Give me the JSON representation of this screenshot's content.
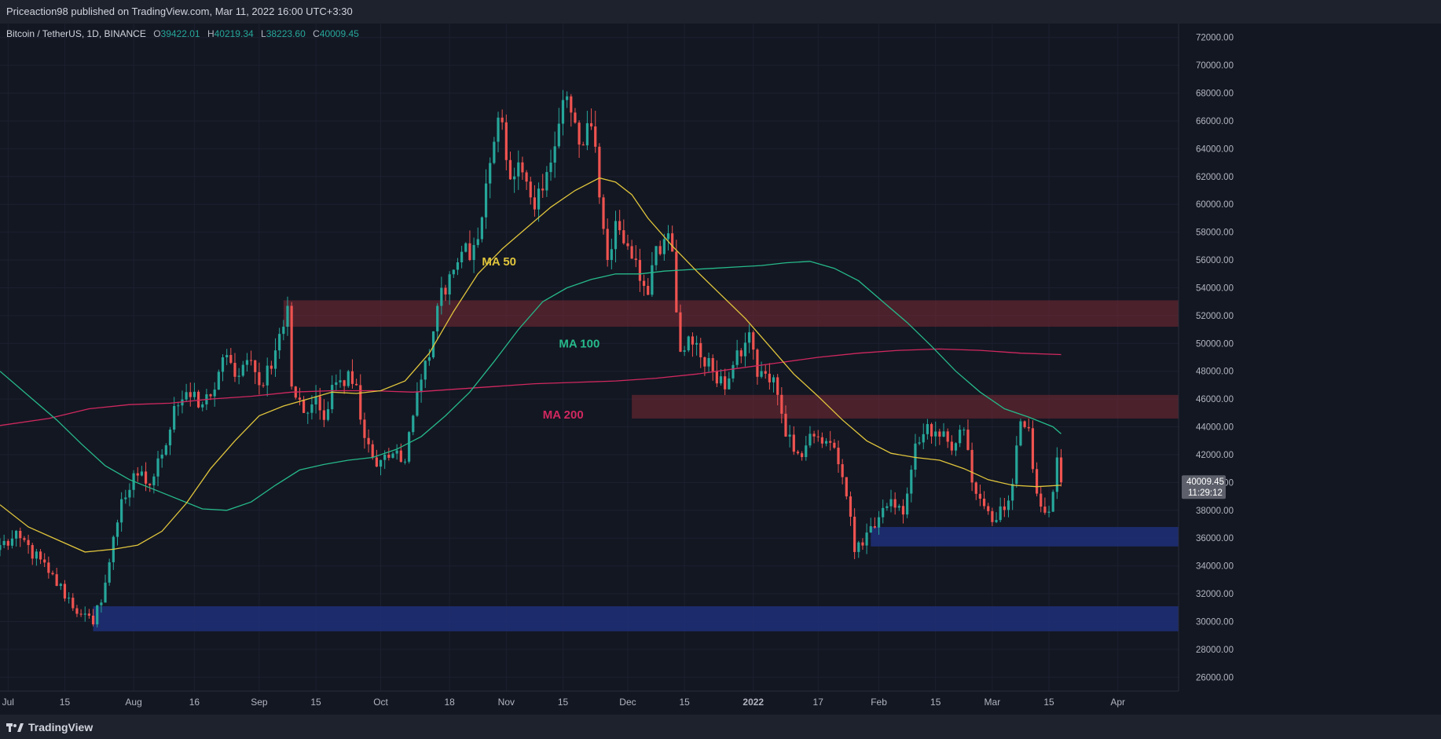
{
  "header": {
    "publish_text": "Priceaction98 published on TradingView.com, Mar 11, 2022 16:00 UTC+3:30"
  },
  "symbol": {
    "name": "Bitcoin / TetherUS, 1D, BINANCE",
    "open_label": "O",
    "open": "39422.01",
    "high_label": "H",
    "high": "40219.34",
    "low_label": "L",
    "low": "38223.60",
    "close_label": "C",
    "close": "40009.45"
  },
  "price_tag": {
    "price": "40009.45",
    "countdown": "11:29:12"
  },
  "footer": {
    "brand": "TradingView"
  },
  "colors": {
    "background": "#131722",
    "up": "#26a69a",
    "down": "#ef5350",
    "ma50": "#e0c53c",
    "ma100": "#26b98a",
    "ma200": "#d0285f",
    "resistance_zone": "#7a2a35",
    "support_zone": "#1f2f78"
  },
  "chart_data": {
    "type": "candlestick",
    "ylim": [
      25000,
      73000
    ],
    "y_ticks": [
      "72000.00",
      "70000.00",
      "68000.00",
      "66000.00",
      "64000.00",
      "62000.00",
      "60000.00",
      "58000.00",
      "56000.00",
      "54000.00",
      "52000.00",
      "50000.00",
      "48000.00",
      "46000.00",
      "44000.00",
      "42000.00",
      "40000.00",
      "38000.00",
      "36000.00",
      "34000.00",
      "32000.00",
      "30000.00",
      "28000.00",
      "26000.00"
    ],
    "x_ticks": [
      {
        "label": "Jul",
        "day": 0
      },
      {
        "label": "15",
        "day": 14
      },
      {
        "label": "Aug",
        "day": 31
      },
      {
        "label": "16",
        "day": 46
      },
      {
        "label": "Sep",
        "day": 62
      },
      {
        "label": "15",
        "day": 76
      },
      {
        "label": "Oct",
        "day": 92
      },
      {
        "label": "18",
        "day": 109
      },
      {
        "label": "Nov",
        "day": 123
      },
      {
        "label": "15",
        "day": 137
      },
      {
        "label": "Dec",
        "day": 153
      },
      {
        "label": "15",
        "day": 167
      },
      {
        "label": "2022",
        "day": 184
      },
      {
        "label": "17",
        "day": 200
      },
      {
        "label": "Feb",
        "day": 215
      },
      {
        "label": "15",
        "day": 229
      },
      {
        "label": "Mar",
        "day": 243
      },
      {
        "label": "15",
        "day": 257
      },
      {
        "label": "Apr",
        "day": 274
      }
    ],
    "x_range_days": [
      -2,
      289
    ],
    "candle_anchors": [
      [
        -2,
        35500
      ],
      [
        3,
        36000
      ],
      [
        10,
        33500
      ],
      [
        18,
        30500
      ],
      [
        21,
        29800
      ],
      [
        24,
        32800
      ],
      [
        28,
        38800
      ],
      [
        32,
        40500
      ],
      [
        35,
        39800
      ],
      [
        38,
        42000
      ],
      [
        41,
        45500
      ],
      [
        44,
        46500
      ],
      [
        47,
        45400
      ],
      [
        50,
        46200
      ],
      [
        53,
        49000
      ],
      [
        56,
        47600
      ],
      [
        59,
        48800
      ],
      [
        62,
        47000
      ],
      [
        66,
        49500
      ],
      [
        68,
        51200
      ],
      [
        69,
        52700
      ],
      [
        70,
        46900
      ],
      [
        73,
        45000
      ],
      [
        76,
        46200
      ],
      [
        78,
        44500
      ],
      [
        81,
        47200
      ],
      [
        84,
        48000
      ],
      [
        86,
        47000
      ],
      [
        88,
        43200
      ],
      [
        90,
        41800
      ],
      [
        93,
        42000
      ],
      [
        96,
        42300
      ],
      [
        98,
        41500
      ],
      [
        101,
        46500
      ],
      [
        104,
        49000
      ],
      [
        107,
        54000
      ],
      [
        110,
        55300
      ],
      [
        113,
        57200
      ],
      [
        114,
        56000
      ],
      [
        116,
        57500
      ],
      [
        118,
        61500
      ],
      [
        120,
        64500
      ],
      [
        122,
        65900
      ],
      [
        124,
        61800
      ],
      [
        127,
        62300
      ],
      [
        129,
        60500
      ],
      [
        132,
        61000
      ],
      [
        134,
        63000
      ],
      [
        136,
        65800
      ],
      [
        137,
        67500
      ],
      [
        139,
        66600
      ],
      [
        141,
        64300
      ],
      [
        144,
        65600
      ],
      [
        146,
        60500
      ],
      [
        148,
        56000
      ],
      [
        150,
        58800
      ],
      [
        152,
        57200
      ],
      [
        154,
        56100
      ],
      [
        156,
        54500
      ],
      [
        158,
        53500
      ],
      [
        160,
        57000
      ],
      [
        162,
        57500
      ],
      [
        164,
        56600
      ],
      [
        166,
        49400
      ],
      [
        168,
        50500
      ],
      [
        171,
        49000
      ],
      [
        174,
        48000
      ],
      [
        177,
        46700
      ],
      [
        180,
        49500
      ],
      [
        183,
        50800
      ],
      [
        185,
        47600
      ],
      [
        188,
        47200
      ],
      [
        190,
        46300
      ],
      [
        192,
        43300
      ],
      [
        195,
        42100
      ],
      [
        198,
        43500
      ],
      [
        201,
        42800
      ],
      [
        204,
        42500
      ],
      [
        207,
        39000
      ],
      [
        209,
        35000
      ],
      [
        212,
        36400
      ],
      [
        215,
        37500
      ],
      [
        218,
        38800
      ],
      [
        221,
        37700
      ],
      [
        224,
        42800
      ],
      [
        227,
        44200
      ],
      [
        230,
        43300
      ],
      [
        233,
        42300
      ],
      [
        236,
        43800
      ],
      [
        238,
        40000
      ],
      [
        241,
        38300
      ],
      [
        244,
        37300
      ],
      [
        247,
        38700
      ],
      [
        250,
        44400
      ],
      [
        252,
        43900
      ],
      [
        254,
        39200
      ],
      [
        257,
        37900
      ],
      [
        259,
        41800
      ],
      [
        260,
        40009
      ]
    ],
    "ma_labels": {
      "ma50": "MA 50",
      "ma100": "MA 100",
      "ma200": "MA 200"
    },
    "ma50_path": [
      [
        -2,
        38400
      ],
      [
        5,
        36800
      ],
      [
        12,
        35900
      ],
      [
        19,
        35000
      ],
      [
        26,
        35200
      ],
      [
        32,
        35500
      ],
      [
        38,
        36500
      ],
      [
        44,
        38500
      ],
      [
        50,
        41000
      ],
      [
        56,
        43000
      ],
      [
        62,
        44800
      ],
      [
        68,
        45500
      ],
      [
        74,
        46000
      ],
      [
        80,
        46500
      ],
      [
        86,
        46400
      ],
      [
        92,
        46600
      ],
      [
        98,
        47300
      ],
      [
        104,
        49300
      ],
      [
        110,
        52300
      ],
      [
        116,
        55000
      ],
      [
        122,
        56800
      ],
      [
        128,
        58300
      ],
      [
        134,
        59800
      ],
      [
        140,
        61000
      ],
      [
        146,
        61900
      ],
      [
        150,
        61600
      ],
      [
        154,
        60700
      ],
      [
        158,
        59000
      ],
      [
        164,
        57000
      ],
      [
        170,
        55200
      ],
      [
        176,
        53500
      ],
      [
        182,
        51800
      ],
      [
        188,
        49800
      ],
      [
        194,
        47800
      ],
      [
        200,
        46200
      ],
      [
        206,
        44500
      ],
      [
        212,
        43000
      ],
      [
        218,
        42100
      ],
      [
        224,
        41800
      ],
      [
        230,
        41600
      ],
      [
        236,
        41000
      ],
      [
        242,
        40200
      ],
      [
        248,
        39800
      ],
      [
        254,
        39700
      ],
      [
        260,
        39800
      ]
    ],
    "ma100_path": [
      [
        -2,
        48000
      ],
      [
        6,
        46000
      ],
      [
        12,
        44500
      ],
      [
        18,
        42800
      ],
      [
        24,
        41200
      ],
      [
        30,
        40200
      ],
      [
        36,
        39500
      ],
      [
        42,
        38800
      ],
      [
        48,
        38100
      ],
      [
        54,
        38000
      ],
      [
        60,
        38600
      ],
      [
        66,
        39800
      ],
      [
        72,
        40900
      ],
      [
        78,
        41300
      ],
      [
        84,
        41600
      ],
      [
        90,
        41800
      ],
      [
        96,
        42400
      ],
      [
        102,
        43300
      ],
      [
        108,
        44800
      ],
      [
        114,
        46500
      ],
      [
        120,
        48700
      ],
      [
        126,
        51000
      ],
      [
        132,
        53000
      ],
      [
        138,
        54000
      ],
      [
        144,
        54600
      ],
      [
        150,
        55000
      ],
      [
        156,
        55000
      ],
      [
        162,
        55200
      ],
      [
        168,
        55300
      ],
      [
        174,
        55400
      ],
      [
        180,
        55500
      ],
      [
        186,
        55600
      ],
      [
        192,
        55800
      ],
      [
        198,
        55900
      ],
      [
        204,
        55400
      ],
      [
        210,
        54500
      ],
      [
        216,
        53000
      ],
      [
        222,
        51500
      ],
      [
        228,
        49800
      ],
      [
        234,
        48000
      ],
      [
        240,
        46500
      ],
      [
        246,
        45300
      ],
      [
        252,
        44700
      ],
      [
        258,
        44000
      ],
      [
        260,
        43500
      ]
    ],
    "ma200_path": [
      [
        -2,
        44100
      ],
      [
        10,
        44600
      ],
      [
        20,
        45300
      ],
      [
        30,
        45600
      ],
      [
        40,
        45700
      ],
      [
        50,
        46000
      ],
      [
        60,
        46200
      ],
      [
        70,
        46500
      ],
      [
        80,
        46600
      ],
      [
        90,
        46600
      ],
      [
        100,
        46500
      ],
      [
        110,
        46700
      ],
      [
        120,
        46900
      ],
      [
        130,
        47100
      ],
      [
        140,
        47200
      ],
      [
        150,
        47300
      ],
      [
        160,
        47500
      ],
      [
        170,
        47800
      ],
      [
        180,
        48200
      ],
      [
        190,
        48600
      ],
      [
        200,
        49000
      ],
      [
        210,
        49300
      ],
      [
        220,
        49500
      ],
      [
        230,
        49600
      ],
      [
        240,
        49500
      ],
      [
        250,
        49300
      ],
      [
        260,
        49200
      ]
    ],
    "zones": [
      {
        "kind": "resistance",
        "from_day": 68,
        "low": 51200,
        "high": 53100
      },
      {
        "kind": "resistance",
        "from_day": 154,
        "low": 44600,
        "high": 46300
      },
      {
        "kind": "support",
        "from_day": 213,
        "low": 35400,
        "high": 36800
      },
      {
        "kind": "support",
        "from_day": 21,
        "low": 29300,
        "high": 31100
      }
    ]
  }
}
